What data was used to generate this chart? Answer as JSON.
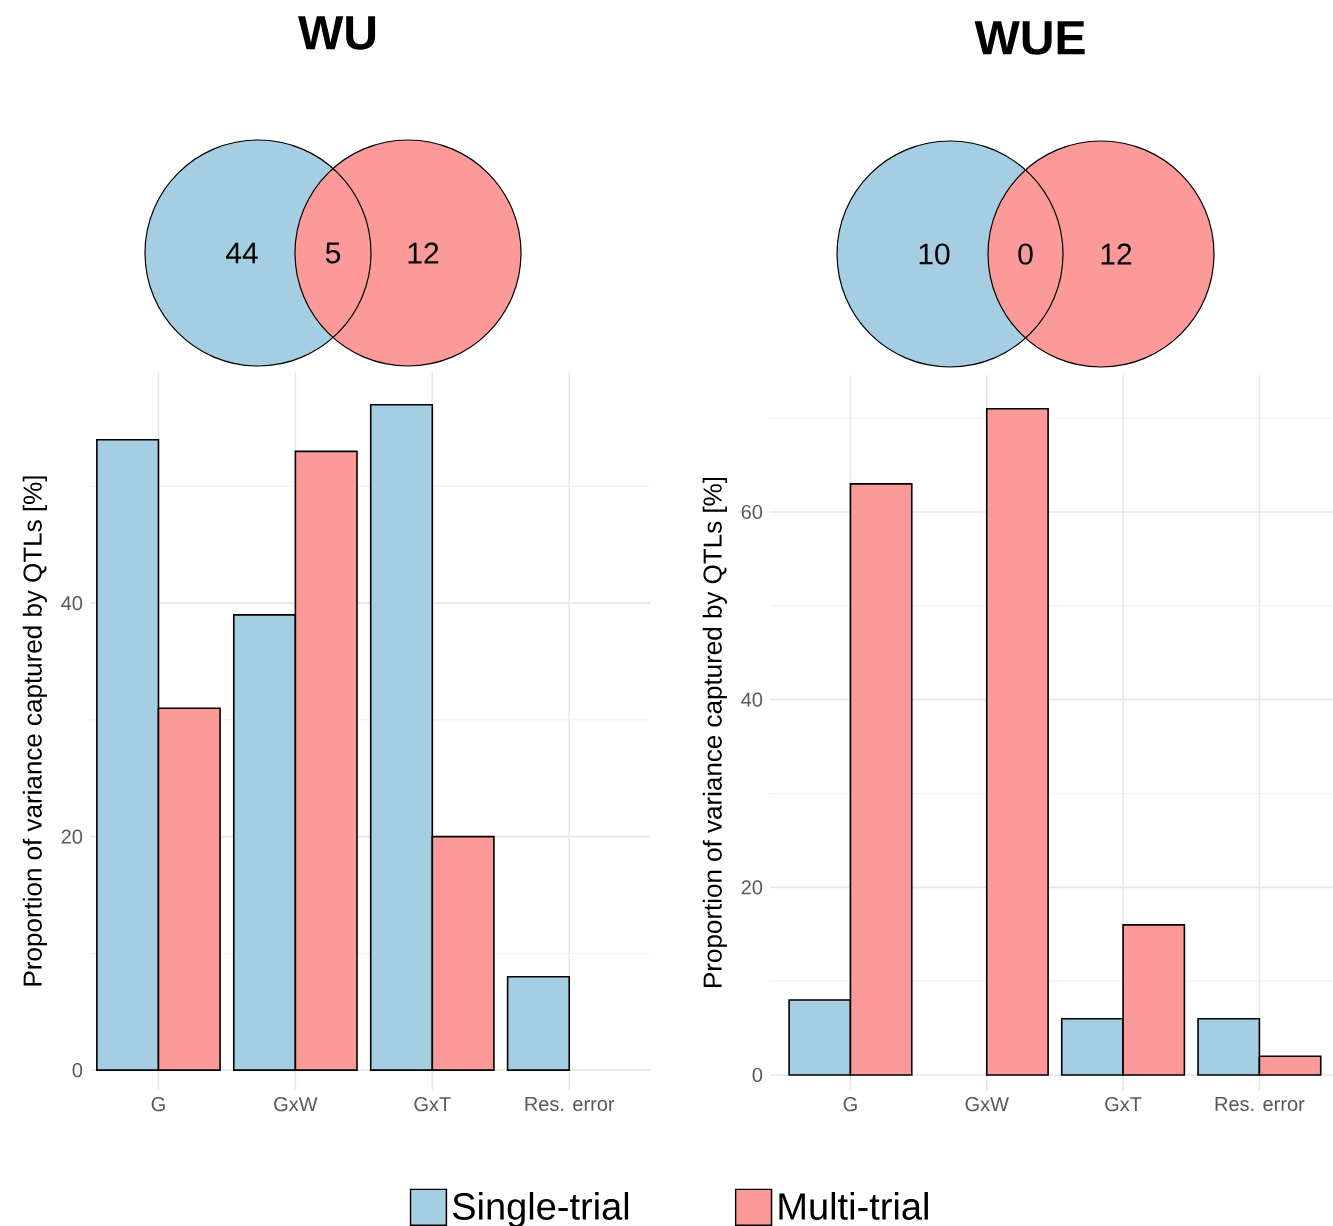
{
  "chart_data": [
    {
      "type": "other",
      "title": "WU",
      "categories": [
        null,
        null,
        null
      ],
      "values": [
        44,
        5,
        12
      ],
      "data_labels": true,
      "colors": [
        "#a6cee3",
        "#fb9a99",
        "#fb9a99"
      ]
    },
    {
      "type": "bar",
      "categories": [
        "G",
        "GxW",
        "GxT",
        "Res. error"
      ],
      "ylabel": "Proportion of variance captured by QTLs [%]",
      "ylim": [
        -1.7,
        59.8
      ],
      "yticks": [
        0,
        {
          "value": 10,
          "label": null
        },
        20,
        {
          "value": 30,
          "label": null
        },
        40,
        {
          "value": 50,
          "label": null
        }
      ],
      "grid": true,
      "series": [
        {
          "color": "#a6cee3",
          "values": [
            54,
            39,
            57,
            8
          ]
        },
        {
          "color": "#fb9a99",
          "values": [
            31,
            53,
            20,
            0
          ]
        }
      ]
    },
    {
      "type": "other",
      "title": "WUE",
      "categories": [
        null,
        null,
        null
      ],
      "values": [
        10,
        0,
        12
      ],
      "data_labels": true,
      "colors": [
        "#a6cee3",
        "#fb9a99",
        "#fb9a99"
      ]
    },
    {
      "type": "bar",
      "categories": [
        "G",
        "GxW",
        "GxT",
        "Res. error"
      ],
      "ylabel": "Proportion of variance captured by QTLs [%]",
      "ylim": [
        -1.6,
        74.6
      ],
      "yticks": [
        0,
        {
          "value": 10,
          "label": null
        },
        20,
        {
          "value": 30,
          "label": null
        },
        40,
        {
          "value": 50,
          "label": null
        },
        60,
        {
          "value": 70,
          "label": null
        }
      ],
      "grid": true,
      "legend": "bottom",
      "series": [
        {
          "name": "Single-trial",
          "color": "#a6cee3",
          "values": [
            8,
            0,
            6,
            6
          ]
        },
        {
          "name": "Multi-trial",
          "color": "#fb9a99",
          "values": [
            63,
            71,
            16,
            2
          ]
        }
      ]
    }
  ]
}
